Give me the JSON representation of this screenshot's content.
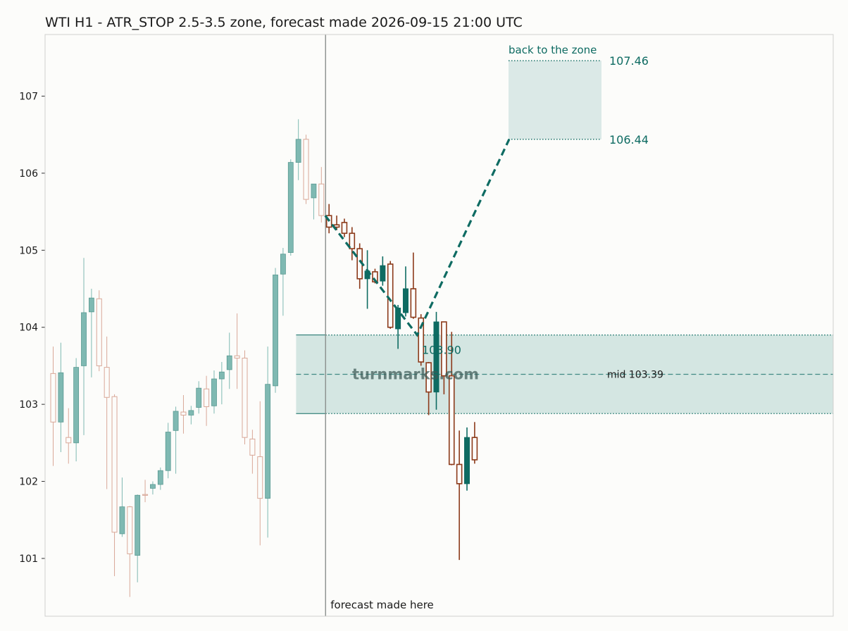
{
  "chart_data": {
    "type": "candlestick",
    "title": "WTI H1 - ATR_STOP 2.5-3.5 zone, forecast made 2026-09-15 21:00 UTC",
    "ylim": [
      100.25,
      107.8
    ],
    "yticks": [
      101,
      102,
      103,
      104,
      105,
      106,
      107
    ],
    "history_candles": [
      [
        103.4,
        103.75,
        102.2,
        102.77
      ],
      [
        102.77,
        103.8,
        102.38,
        103.41
      ],
      [
        102.57,
        102.95,
        102.23,
        102.5
      ],
      [
        102.5,
        103.6,
        102.26,
        103.48
      ],
      [
        103.5,
        104.9,
        102.6,
        104.19
      ],
      [
        104.2,
        104.5,
        103.35,
        104.38
      ],
      [
        104.37,
        104.48,
        103.43,
        103.5
      ],
      [
        103.48,
        103.88,
        101.9,
        103.09
      ],
      [
        103.1,
        103.13,
        100.77,
        101.34
      ],
      [
        101.32,
        102.05,
        101.28,
        101.67
      ],
      [
        101.67,
        101.68,
        100.5,
        101.06
      ],
      [
        101.04,
        101.83,
        100.69,
        101.82
      ],
      [
        101.83,
        102.02,
        101.73,
        101.82
      ],
      [
        101.91,
        102.0,
        101.83,
        101.96
      ],
      [
        101.96,
        102.18,
        101.89,
        102.14
      ],
      [
        102.14,
        102.76,
        102.04,
        102.64
      ],
      [
        102.66,
        102.97,
        102.1,
        102.91
      ],
      [
        102.9,
        103.12,
        102.62,
        102.86
      ],
      [
        102.86,
        102.98,
        102.74,
        102.92
      ],
      [
        102.96,
        103.3,
        102.88,
        103.21
      ],
      [
        103.2,
        103.37,
        102.72,
        102.97
      ],
      [
        102.98,
        103.44,
        102.88,
        103.33
      ],
      [
        103.33,
        103.55,
        103.0,
        103.42
      ],
      [
        103.45,
        103.93,
        103.2,
        103.63
      ],
      [
        103.63,
        104.18,
        103.2,
        103.6
      ],
      [
        103.6,
        103.7,
        102.48,
        102.57
      ],
      [
        102.55,
        102.67,
        102.1,
        102.34
      ],
      [
        102.32,
        103.04,
        101.17,
        101.78
      ],
      [
        101.78,
        103.75,
        101.27,
        103.26
      ],
      [
        103.24,
        104.77,
        103.15,
        104.68
      ],
      [
        104.69,
        105.03,
        104.15,
        104.95
      ],
      [
        104.97,
        106.18,
        104.93,
        106.14
      ],
      [
        106.14,
        106.7,
        105.91,
        106.44
      ],
      [
        106.44,
        106.5,
        105.6,
        105.66
      ],
      [
        105.68,
        105.86,
        105.4,
        105.86
      ],
      [
        105.86,
        106.08,
        105.36,
        105.45
      ]
    ],
    "actual_candles": [
      [
        105.45,
        105.6,
        105.22,
        105.3
      ],
      [
        105.33,
        105.45,
        105.26,
        105.3
      ],
      [
        105.36,
        105.41,
        105.17,
        105.22
      ],
      [
        105.22,
        105.3,
        104.87,
        105.02
      ],
      [
        105.02,
        105.09,
        104.5,
        104.63
      ],
      [
        104.63,
        105.0,
        104.24,
        104.73
      ],
      [
        104.72,
        104.76,
        104.57,
        104.59
      ],
      [
        104.6,
        104.92,
        104.54,
        104.8
      ],
      [
        104.82,
        104.86,
        103.98,
        104.0
      ],
      [
        103.98,
        104.29,
        103.72,
        104.25
      ],
      [
        104.19,
        104.79,
        104.14,
        104.5
      ],
      [
        104.5,
        104.97,
        104.11,
        104.13
      ],
      [
        104.12,
        104.17,
        103.5,
        103.55
      ],
      [
        103.54,
        103.55,
        102.86,
        103.16
      ],
      [
        103.16,
        104.2,
        102.93,
        104.07
      ],
      [
        104.07,
        104.07,
        103.13,
        103.37
      ],
      [
        103.37,
        103.94,
        102.21,
        102.22
      ],
      [
        102.22,
        102.66,
        100.98,
        101.97
      ],
      [
        101.97,
        102.7,
        101.88,
        102.57
      ],
      [
        102.57,
        102.77,
        102.23,
        102.28
      ]
    ],
    "forecast_path": [
      {
        "bar": -0.5,
        "price": 105.45
      },
      {
        "bar": 11.5,
        "price": 103.9
      },
      {
        "bar": 23.5,
        "price": 106.44
      }
    ],
    "zone": {
      "top": 103.9,
      "bottom": 102.88,
      "mid": 103.39,
      "entry_label": "103.90",
      "mid_label": "mid 103.39"
    },
    "target": {
      "low": 106.44,
      "high": 107.46,
      "low_label": "106.44",
      "high_label": "107.46",
      "label": "back to the zone"
    },
    "forecast_label": "forecast made here",
    "watermark": "turnmarks.com",
    "colors": {
      "hist_up": "#7fb9b2",
      "hist_down": "#d9a898",
      "act_up": "#0e6b62",
      "act_down": "#8c3a1a",
      "teal": "#0e6b62",
      "zone_fill": "#d4e6e2",
      "target_fill": "#dbe9e7",
      "divider": "#8a8f8c",
      "frame": "#cfcfcf"
    }
  }
}
